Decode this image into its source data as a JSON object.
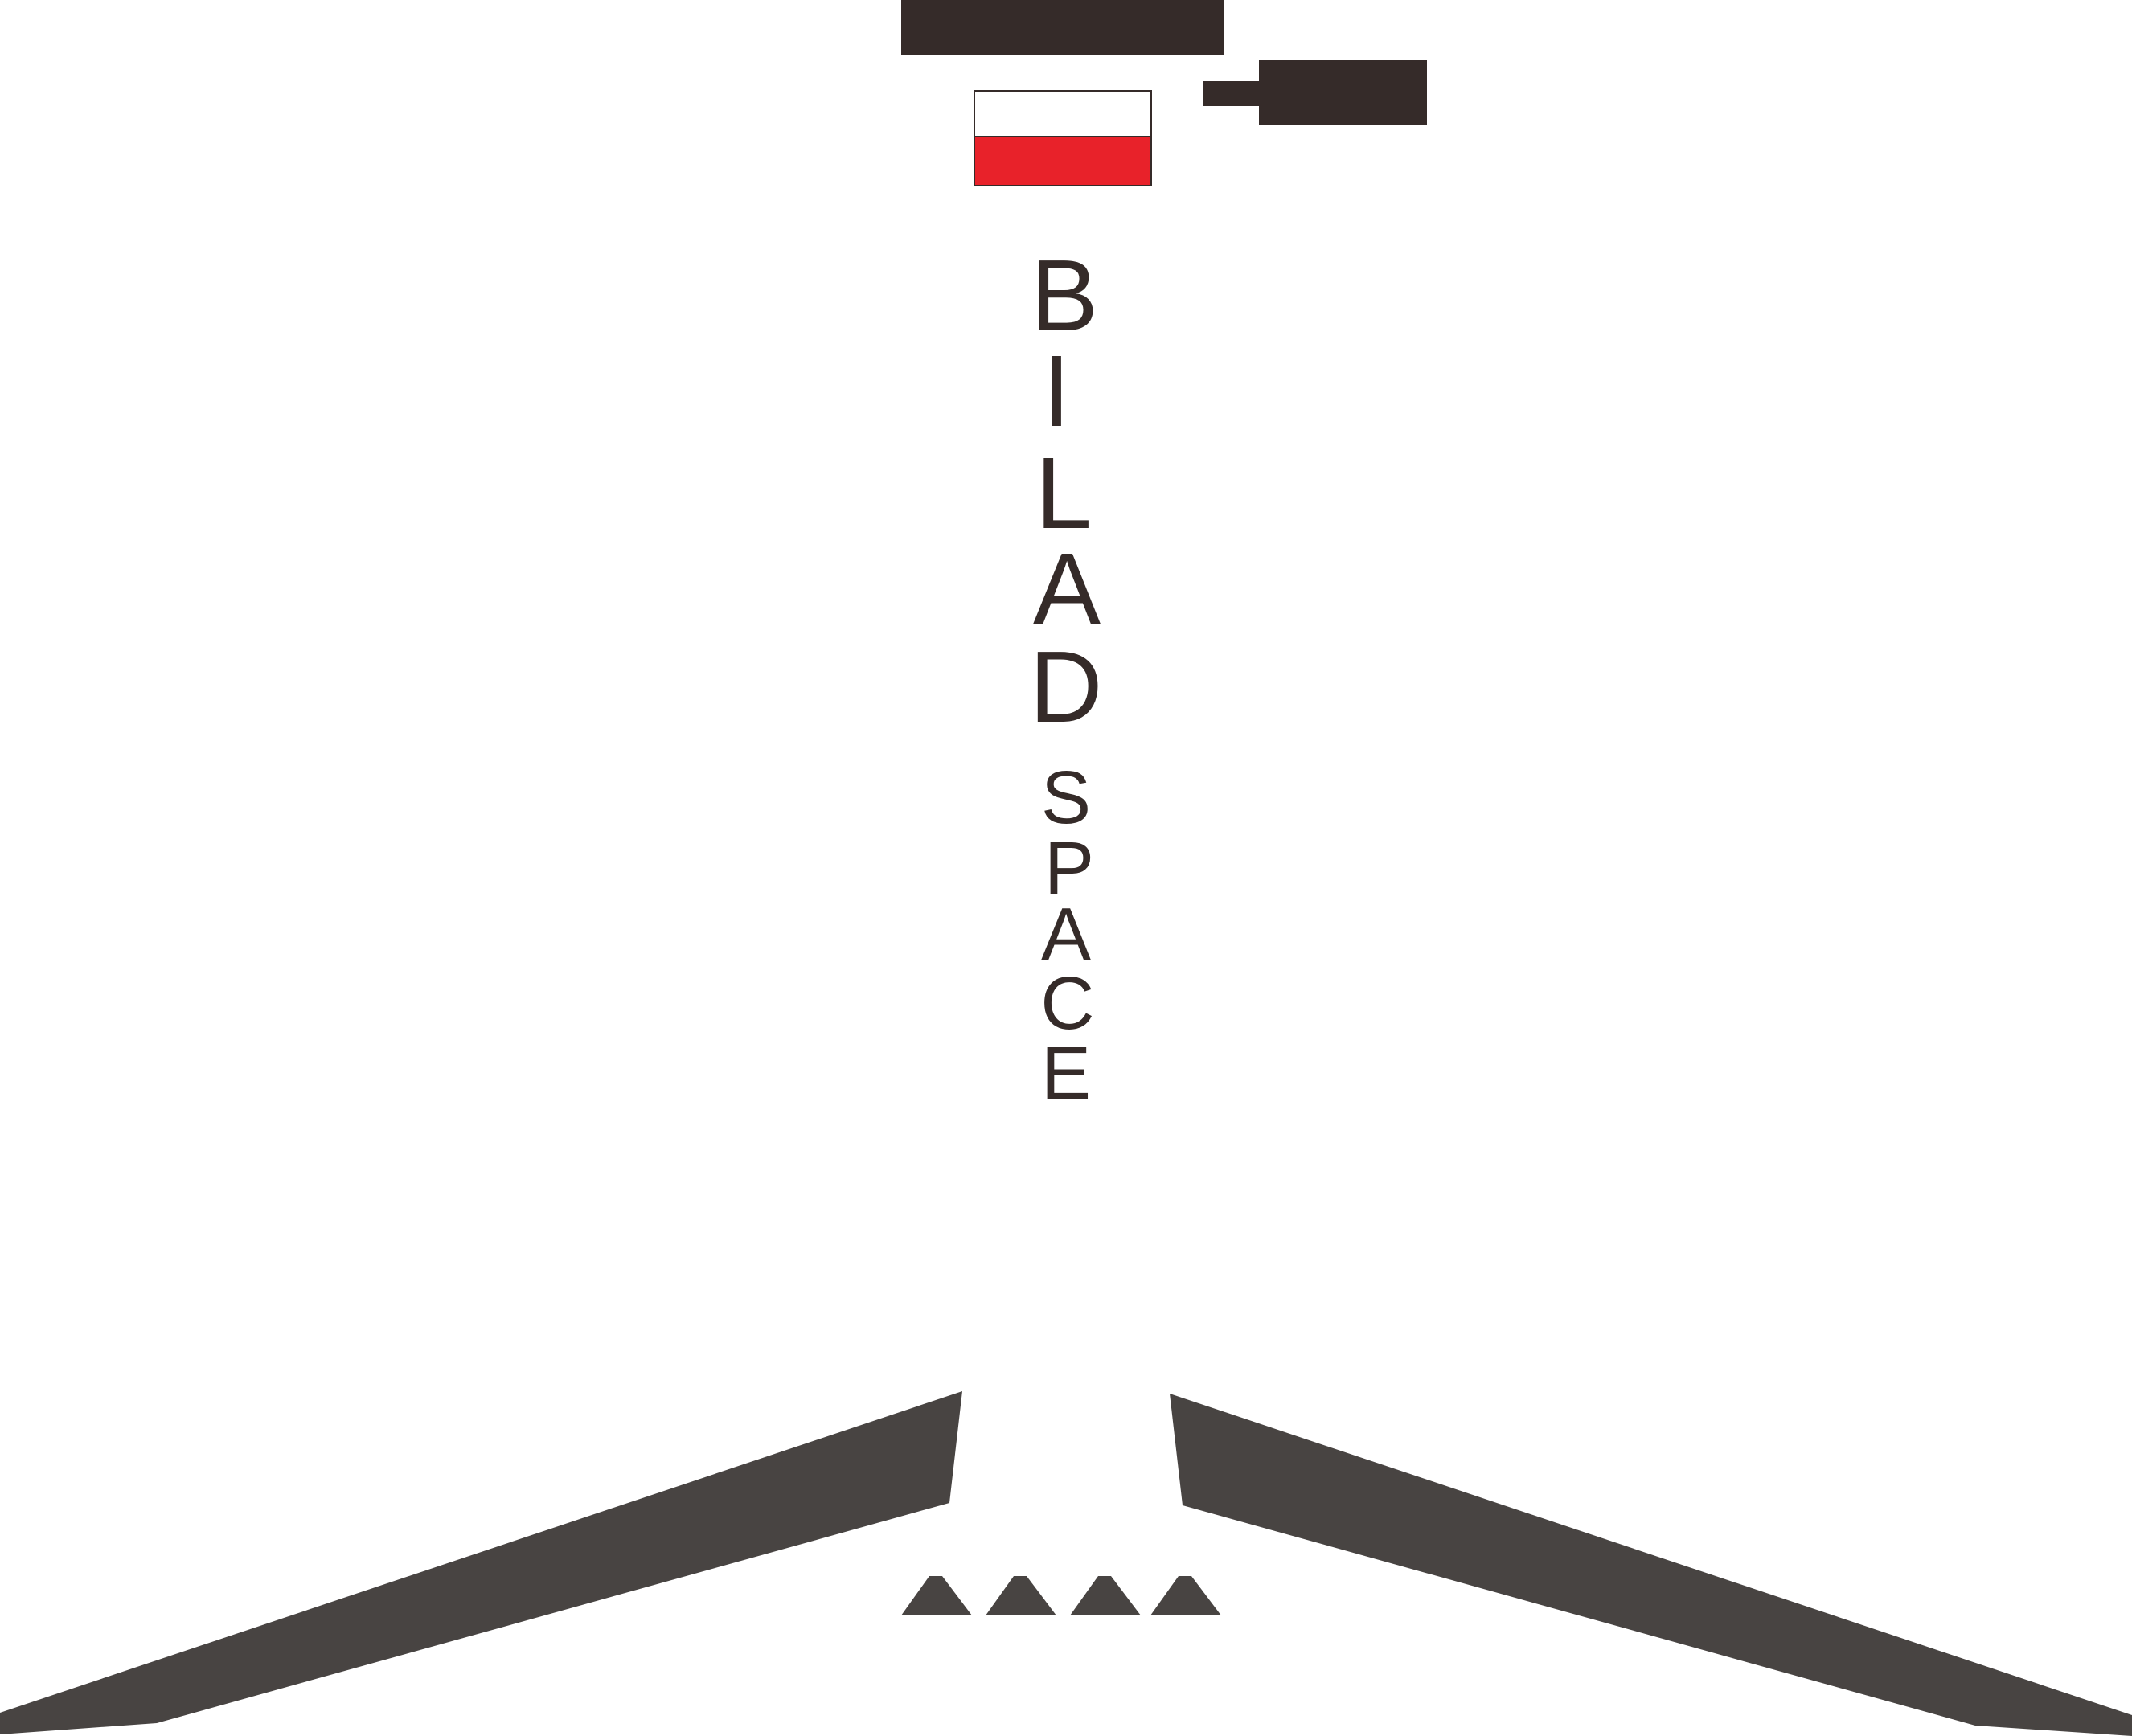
{
  "label": {
    "word_1": "BILAD",
    "word_2": "SPACE"
  },
  "colors": {
    "dark": "#352b29",
    "wing": "#484442",
    "flag_red": "#e8222a",
    "flag_white": "#ffffff",
    "background": "#ffffff"
  },
  "icons": {
    "flag": "flag-icon",
    "fin": "fin-icon"
  }
}
